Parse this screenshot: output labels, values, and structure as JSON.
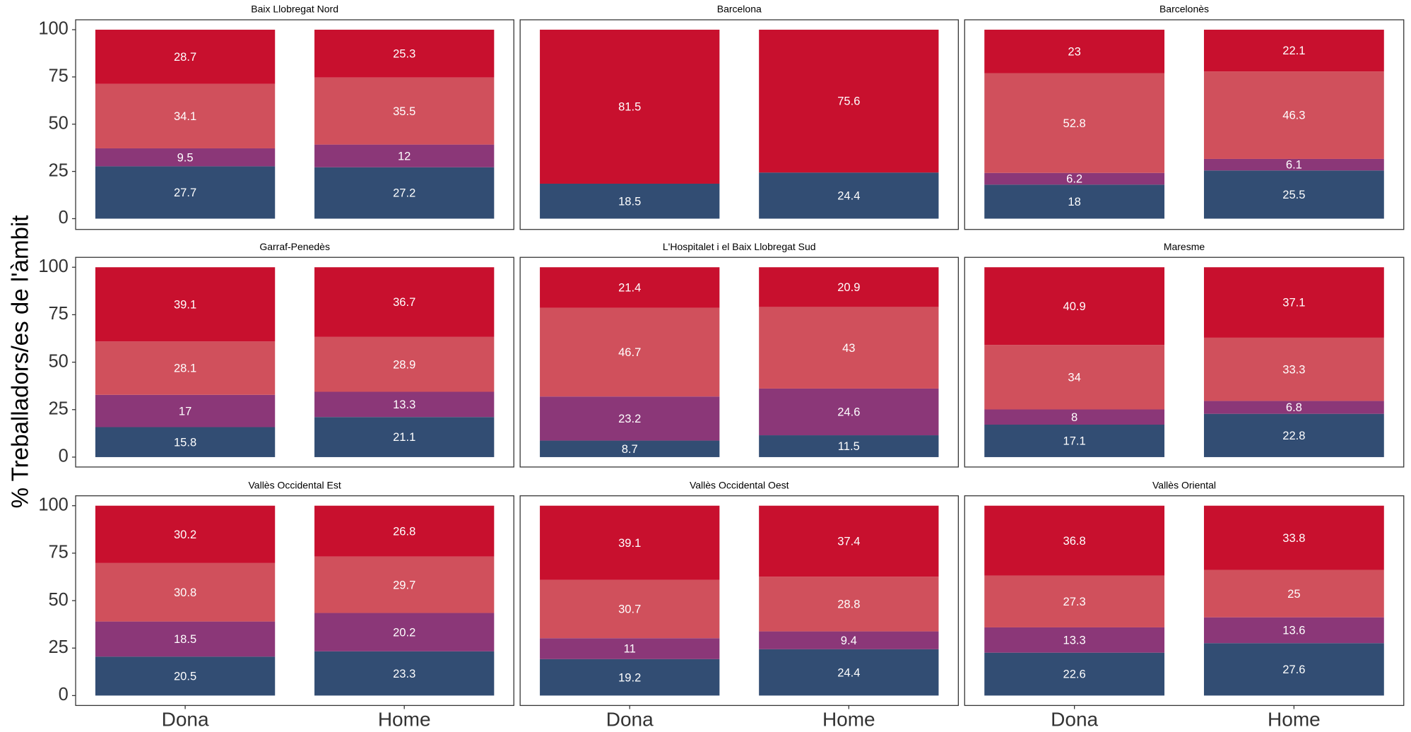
{
  "chart_data": {
    "type": "bar",
    "stacked": true,
    "ylabel": "% Treballadors/es de l'àmbit",
    "categories": [
      "Dona",
      "Home"
    ],
    "ylim": [
      0,
      100
    ],
    "yticks": [
      0,
      25,
      50,
      75,
      100
    ],
    "facets": [
      {
        "title": "Baix Llobregat Nord",
        "series": [
          {
            "color": "#324d73",
            "values": [
              27.7,
              27.2
            ]
          },
          {
            "color": "#8b3778",
            "values": [
              9.5,
              12
            ]
          },
          {
            "color": "#d0505c",
            "values": [
              34.1,
              35.5
            ]
          },
          {
            "color": "#c8102e",
            "values": [
              28.7,
              25.3
            ]
          }
        ]
      },
      {
        "title": "Barcelona",
        "series": [
          {
            "color": "#324d73",
            "values": [
              18.5,
              24.4
            ]
          },
          {
            "color": "#8b3778",
            "values": [
              null,
              null
            ]
          },
          {
            "color": "#d0505c",
            "values": [
              null,
              null
            ]
          },
          {
            "color": "#c8102e",
            "values": [
              81.5,
              75.6
            ]
          }
        ]
      },
      {
        "title": "Barcelonès",
        "series": [
          {
            "color": "#324d73",
            "values": [
              18,
              25.5
            ]
          },
          {
            "color": "#8b3778",
            "values": [
              6.2,
              6.1
            ]
          },
          {
            "color": "#d0505c",
            "values": [
              52.8,
              46.3
            ]
          },
          {
            "color": "#c8102e",
            "values": [
              23,
              22.1
            ]
          }
        ]
      },
      {
        "title": "Garraf-Penedès",
        "series": [
          {
            "color": "#324d73",
            "values": [
              15.8,
              21.1
            ]
          },
          {
            "color": "#8b3778",
            "values": [
              17,
              13.3
            ]
          },
          {
            "color": "#d0505c",
            "values": [
              28.1,
              28.9
            ]
          },
          {
            "color": "#c8102e",
            "values": [
              39.1,
              36.7
            ]
          }
        ]
      },
      {
        "title": "L'Hospitalet i el Baix Llobregat Sud",
        "series": [
          {
            "color": "#324d73",
            "values": [
              8.7,
              11.5
            ]
          },
          {
            "color": "#8b3778",
            "values": [
              23.2,
              24.6
            ]
          },
          {
            "color": "#d0505c",
            "values": [
              46.7,
              43
            ]
          },
          {
            "color": "#c8102e",
            "values": [
              21.4,
              20.9
            ]
          }
        ]
      },
      {
        "title": "Maresme",
        "series": [
          {
            "color": "#324d73",
            "values": [
              17.1,
              22.8
            ]
          },
          {
            "color": "#8b3778",
            "values": [
              8,
              6.8
            ]
          },
          {
            "color": "#d0505c",
            "values": [
              34,
              33.3
            ]
          },
          {
            "color": "#c8102e",
            "values": [
              40.9,
              37.1
            ]
          }
        ]
      },
      {
        "title": "Vallès Occidental Est",
        "series": [
          {
            "color": "#324d73",
            "values": [
              20.5,
              23.3
            ]
          },
          {
            "color": "#8b3778",
            "values": [
              18.5,
              20.2
            ]
          },
          {
            "color": "#d0505c",
            "values": [
              30.8,
              29.7
            ]
          },
          {
            "color": "#c8102e",
            "values": [
              30.2,
              26.8
            ]
          }
        ]
      },
      {
        "title": "Vallès Occidental Oest",
        "series": [
          {
            "color": "#324d73",
            "values": [
              19.2,
              24.4
            ]
          },
          {
            "color": "#8b3778",
            "values": [
              11,
              9.4
            ]
          },
          {
            "color": "#d0505c",
            "values": [
              30.7,
              28.8
            ]
          },
          {
            "color": "#c8102e",
            "values": [
              39.1,
              37.4
            ]
          }
        ]
      },
      {
        "title": "Vallès Oriental",
        "series": [
          {
            "color": "#324d73",
            "values": [
              22.6,
              27.6
            ]
          },
          {
            "color": "#8b3778",
            "values": [
              13.3,
              13.6
            ]
          },
          {
            "color": "#d0505c",
            "values": [
              27.3,
              25
            ]
          },
          {
            "color": "#c8102e",
            "values": [
              36.8,
              33.8
            ]
          }
        ]
      }
    ]
  }
}
